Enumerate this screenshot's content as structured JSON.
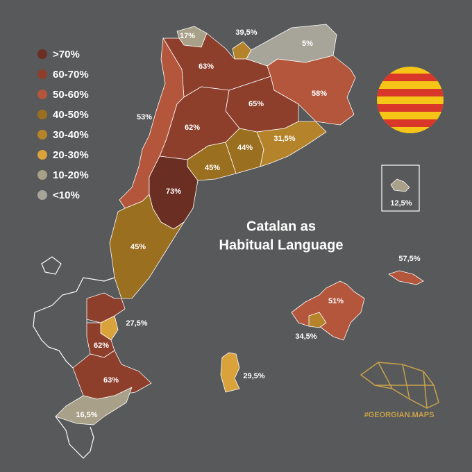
{
  "title": [
    "Catalan as",
    "Habitual Language"
  ],
  "legend": [
    {
      "label": ">70%",
      "color": "#6b2e22"
    },
    {
      "label": "60-70%",
      "color": "#8d3f2c"
    },
    {
      "label": "50-60%",
      "color": "#b4563c"
    },
    {
      "label": "40-50%",
      "color": "#9a6f1f"
    },
    {
      "label": "30-40%",
      "color": "#b5842a"
    },
    {
      "label": "20-30%",
      "color": "#d9a23a"
    },
    {
      "label": "10-20%",
      "color": "#a9a089"
    },
    {
      "label": "<10%",
      "color": "#a7a59a"
    }
  ],
  "regions": [
    {
      "label": "17%",
      "color": "#a9a089"
    },
    {
      "label": "39,5%",
      "color": "#b5842a"
    },
    {
      "label": "5%",
      "color": "#a7a59a"
    },
    {
      "label": "63%",
      "color": "#8d3f2c"
    },
    {
      "label": "58%",
      "color": "#b4563c"
    },
    {
      "label": "65%",
      "color": "#8d3f2c"
    },
    {
      "label": "53%",
      "color": "#b4563c"
    },
    {
      "label": "62%",
      "color": "#8d3f2c"
    },
    {
      "label": "44%",
      "color": "#9a6f1f"
    },
    {
      "label": "31,5%",
      "color": "#b5842a"
    },
    {
      "label": "45%",
      "color": "#9a6f1f"
    },
    {
      "label": "73%",
      "color": "#6b2e22"
    },
    {
      "label": "45%",
      "color": "#9a6f1f"
    },
    {
      "label": "27,5%",
      "color": "#d9a23a"
    },
    {
      "label": "62%",
      "color": "#8d3f2c"
    },
    {
      "label": "63%",
      "color": "#8d3f2c"
    },
    {
      "label": "16,5%",
      "color": "#a9a089"
    },
    {
      "label": "51%",
      "color": "#b4563c"
    },
    {
      "label": "34,5%",
      "color": "#b5842a"
    },
    {
      "label": "57,5%",
      "color": "#b4563c"
    },
    {
      "label": "29,5%",
      "color": "#d9a23a"
    },
    {
      "label": "12,5%",
      "color": "#a9a089"
    }
  ],
  "credit": "#GEORGIAN.MAPS"
}
